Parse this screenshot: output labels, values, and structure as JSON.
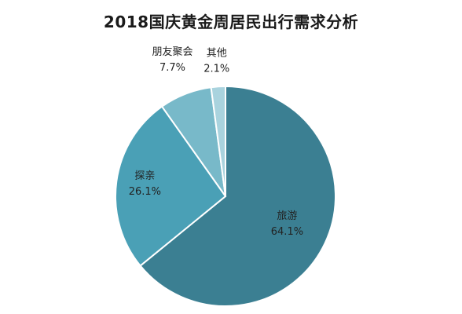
{
  "chart_data": {
    "type": "pie",
    "title": "2018国庆黄金周居民出行需求分析",
    "slices": [
      {
        "label": "旅游",
        "value": 64.1,
        "display": "64.1%",
        "color": "#3b7f92"
      },
      {
        "label": "探亲",
        "value": 26.1,
        "display": "26.1%",
        "color": "#4aa0b6"
      },
      {
        "label": "朋友聚会",
        "value": 7.7,
        "display": "7.7%",
        "color": "#78b9c9"
      },
      {
        "label": "其他",
        "value": 2.1,
        "display": "2.1%",
        "color": "#a9d3de"
      }
    ]
  }
}
